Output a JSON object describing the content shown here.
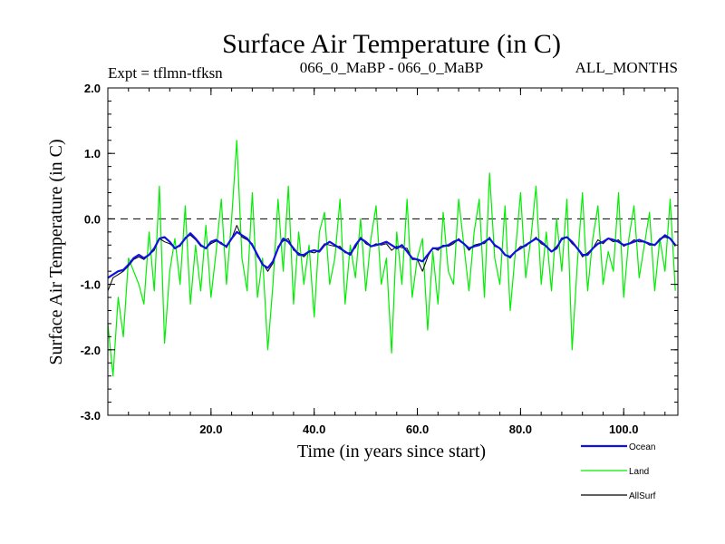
{
  "chart_data": {
    "type": "line",
    "title": "Surface Air Temperature (in C)",
    "subtitle_left": "Expt = tflmn-tfksn",
    "subtitle_center": "066_0_MaBP - 066_0_MaBP",
    "subtitle_right": "ALL_MONTHS",
    "xlabel": "Time (in years since start)",
    "ylabel": "Surface Air Temperature (in C)",
    "xlim": [
      0,
      110.5
    ],
    "ylim": [
      -3.0,
      2.0
    ],
    "x_ticks": [
      20,
      40,
      60,
      80,
      100
    ],
    "x_tick_labels": [
      "20.0",
      "40.0",
      "60.0",
      "80.0",
      "100.0"
    ],
    "y_ticks": [
      2.0,
      1.0,
      0.0,
      -1.0,
      -2.0,
      -3.0
    ],
    "y_tick_labels": [
      "2.0",
      "1.0",
      "0.0",
      "-1.0",
      "-2.0",
      "-3.0"
    ],
    "reference_line": {
      "y": 0.0,
      "style": "dashed"
    },
    "legend": [
      {
        "name": "Ocean",
        "color": "#1010e0"
      },
      {
        "name": "Land",
        "color": "#00ee00"
      },
      {
        "name": "AllSurf",
        "color": "#000000"
      }
    ],
    "series": [
      {
        "name": "Ocean",
        "color": "#1010e0",
        "x": [
          0,
          1,
          2,
          3,
          4,
          5,
          6,
          7,
          8,
          9,
          10,
          11,
          12,
          13,
          14,
          15,
          16,
          17,
          18,
          19,
          20,
          21,
          22,
          23,
          24,
          25,
          26,
          27,
          28,
          29,
          30,
          31,
          32,
          33,
          34,
          35,
          36,
          37,
          38,
          39,
          40,
          41,
          42,
          43,
          44,
          45,
          46,
          47,
          48,
          49,
          50,
          51,
          52,
          53,
          54,
          55,
          56,
          57,
          58,
          59,
          60,
          61,
          62,
          63,
          64,
          65,
          66,
          67,
          68,
          69,
          70,
          71,
          72,
          73,
          74,
          75,
          76,
          77,
          78,
          79,
          80,
          81,
          82,
          83,
          84,
          85,
          86,
          87,
          88,
          89,
          90,
          91,
          92,
          93,
          94,
          95,
          96,
          97,
          98,
          99,
          100,
          101,
          102,
          103,
          104,
          105,
          106,
          107,
          108,
          109,
          110
        ],
        "values": [
          -0.9,
          -0.85,
          -0.8,
          -0.78,
          -0.7,
          -0.6,
          -0.55,
          -0.6,
          -0.55,
          -0.45,
          -0.3,
          -0.28,
          -0.35,
          -0.45,
          -0.4,
          -0.3,
          -0.22,
          -0.3,
          -0.4,
          -0.45,
          -0.35,
          -0.32,
          -0.38,
          -0.42,
          -0.3,
          -0.2,
          -0.25,
          -0.3,
          -0.4,
          -0.55,
          -0.7,
          -0.75,
          -0.65,
          -0.45,
          -0.3,
          -0.35,
          -0.45,
          -0.55,
          -0.55,
          -0.5,
          -0.48,
          -0.5,
          -0.4,
          -0.35,
          -0.4,
          -0.45,
          -0.5,
          -0.55,
          -0.4,
          -0.3,
          -0.35,
          -0.42,
          -0.4,
          -0.38,
          -0.35,
          -0.4,
          -0.45,
          -0.4,
          -0.5,
          -0.6,
          -0.62,
          -0.65,
          -0.55,
          -0.45,
          -0.45,
          -0.42,
          -0.4,
          -0.35,
          -0.32,
          -0.38,
          -0.45,
          -0.42,
          -0.4,
          -0.35,
          -0.3,
          -0.4,
          -0.45,
          -0.55,
          -0.58,
          -0.5,
          -0.45,
          -0.4,
          -0.35,
          -0.3,
          -0.35,
          -0.42,
          -0.5,
          -0.45,
          -0.3,
          -0.28,
          -0.35,
          -0.45,
          -0.55,
          -0.55,
          -0.45,
          -0.38,
          -0.35,
          -0.3,
          -0.32,
          -0.35,
          -0.4,
          -0.38,
          -0.35,
          -0.32,
          -0.35,
          -0.38,
          -0.4,
          -0.32,
          -0.25,
          -0.3,
          -0.4
        ]
      },
      {
        "name": "Land",
        "color": "#00ee00",
        "x": [
          0,
          1,
          2,
          3,
          4,
          5,
          6,
          7,
          8,
          9,
          10,
          11,
          12,
          13,
          14,
          15,
          16,
          17,
          18,
          19,
          20,
          21,
          22,
          23,
          24,
          25,
          26,
          27,
          28,
          29,
          30,
          31,
          32,
          33,
          34,
          35,
          36,
          37,
          38,
          39,
          40,
          41,
          42,
          43,
          44,
          45,
          46,
          47,
          48,
          49,
          50,
          51,
          52,
          53,
          54,
          55,
          56,
          57,
          58,
          59,
          60,
          61,
          62,
          63,
          64,
          65,
          66,
          67,
          68,
          69,
          70,
          71,
          72,
          73,
          74,
          75,
          76,
          77,
          78,
          79,
          80,
          81,
          82,
          83,
          84,
          85,
          86,
          87,
          88,
          89,
          90,
          91,
          92,
          93,
          94,
          95,
          96,
          97,
          98,
          99,
          100,
          101,
          102,
          103,
          104,
          105,
          106,
          107,
          108,
          109,
          110
        ],
        "values": [
          -1.6,
          -2.4,
          -1.2,
          -1.8,
          -0.6,
          -0.8,
          -1.0,
          -1.3,
          -0.2,
          -1.1,
          0.5,
          -1.9,
          -0.8,
          -0.3,
          -1.0,
          0.2,
          -1.3,
          -0.4,
          -1.1,
          -0.1,
          -1.2,
          -0.5,
          0.3,
          -1.0,
          0.0,
          1.2,
          -0.6,
          -1.1,
          0.4,
          -1.2,
          -0.6,
          -2.0,
          -1.0,
          0.3,
          -0.8,
          0.5,
          -1.3,
          -0.2,
          -1.0,
          -0.4,
          -1.5,
          -0.2,
          0.1,
          -1.0,
          -0.6,
          0.3,
          -1.3,
          -0.4,
          -0.9,
          0.0,
          -1.1,
          -0.3,
          0.2,
          -1.0,
          -0.6,
          -2.05,
          -0.2,
          -1.0,
          0.3,
          -1.2,
          -0.6,
          -0.3,
          -1.7,
          -0.5,
          -1.3,
          0.1,
          -0.8,
          -1.0,
          0.3,
          -0.4,
          -1.1,
          -0.2,
          0.3,
          -1.2,
          0.7,
          -0.6,
          -1.0,
          0.2,
          -1.4,
          -0.5,
          0.4,
          -0.9,
          -0.3,
          0.5,
          -1.0,
          -0.2,
          -1.1,
          0.0,
          -0.8,
          0.3,
          -2.0,
          -0.7,
          0.4,
          -1.1,
          -0.3,
          0.2,
          -1.0,
          -0.5,
          -0.8,
          0.4,
          -1.2,
          -0.3,
          0.2,
          -0.9,
          -0.4,
          0.1,
          -1.1,
          -0.3,
          -0.8,
          0.3,
          -1.1
        ]
      },
      {
        "name": "AllSurf",
        "color": "#000000",
        "x": [
          0,
          1,
          2,
          3,
          4,
          5,
          6,
          7,
          8,
          9,
          10,
          11,
          12,
          13,
          14,
          15,
          16,
          17,
          18,
          19,
          20,
          21,
          22,
          23,
          24,
          25,
          26,
          27,
          28,
          29,
          30,
          31,
          32,
          33,
          34,
          35,
          36,
          37,
          38,
          39,
          40,
          41,
          42,
          43,
          44,
          45,
          46,
          47,
          48,
          49,
          50,
          51,
          52,
          53,
          54,
          55,
          56,
          57,
          58,
          59,
          60,
          61,
          62,
          63,
          64,
          65,
          66,
          67,
          68,
          69,
          70,
          71,
          72,
          73,
          74,
          75,
          76,
          77,
          78,
          79,
          80,
          81,
          82,
          83,
          84,
          85,
          86,
          87,
          88,
          89,
          90,
          91,
          92,
          93,
          94,
          95,
          96,
          97,
          98,
          99,
          100,
          101,
          102,
          103,
          104,
          105,
          106,
          107,
          108,
          109,
          110
        ],
        "values": [
          -1.1,
          -0.9,
          -0.85,
          -0.8,
          -0.72,
          -0.62,
          -0.58,
          -0.62,
          -0.55,
          -0.48,
          -0.3,
          -0.35,
          -0.38,
          -0.44,
          -0.42,
          -0.28,
          -0.25,
          -0.32,
          -0.42,
          -0.44,
          -0.38,
          -0.34,
          -0.36,
          -0.44,
          -0.3,
          -0.1,
          -0.28,
          -0.32,
          -0.38,
          -0.58,
          -0.68,
          -0.8,
          -0.68,
          -0.42,
          -0.34,
          -0.3,
          -0.48,
          -0.52,
          -0.58,
          -0.5,
          -0.52,
          -0.48,
          -0.38,
          -0.4,
          -0.42,
          -0.42,
          -0.52,
          -0.52,
          -0.44,
          -0.28,
          -0.38,
          -0.42,
          -0.38,
          -0.4,
          -0.38,
          -0.48,
          -0.42,
          -0.44,
          -0.45,
          -0.62,
          -0.62,
          -0.8,
          -0.58,
          -0.44,
          -0.48,
          -0.4,
          -0.42,
          -0.38,
          -0.3,
          -0.38,
          -0.48,
          -0.4,
          -0.38,
          -0.38,
          -0.28,
          -0.42,
          -0.45,
          -0.55,
          -0.6,
          -0.5,
          -0.42,
          -0.42,
          -0.35,
          -0.28,
          -0.38,
          -0.42,
          -0.5,
          -0.42,
          -0.32,
          -0.28,
          -0.38,
          -0.45,
          -0.58,
          -0.52,
          -0.45,
          -0.32,
          -0.38,
          -0.3,
          -0.35,
          -0.32,
          -0.42,
          -0.38,
          -0.32,
          -0.35,
          -0.35,
          -0.4,
          -0.4,
          -0.3,
          -0.28,
          -0.3,
          -0.42
        ]
      }
    ]
  }
}
